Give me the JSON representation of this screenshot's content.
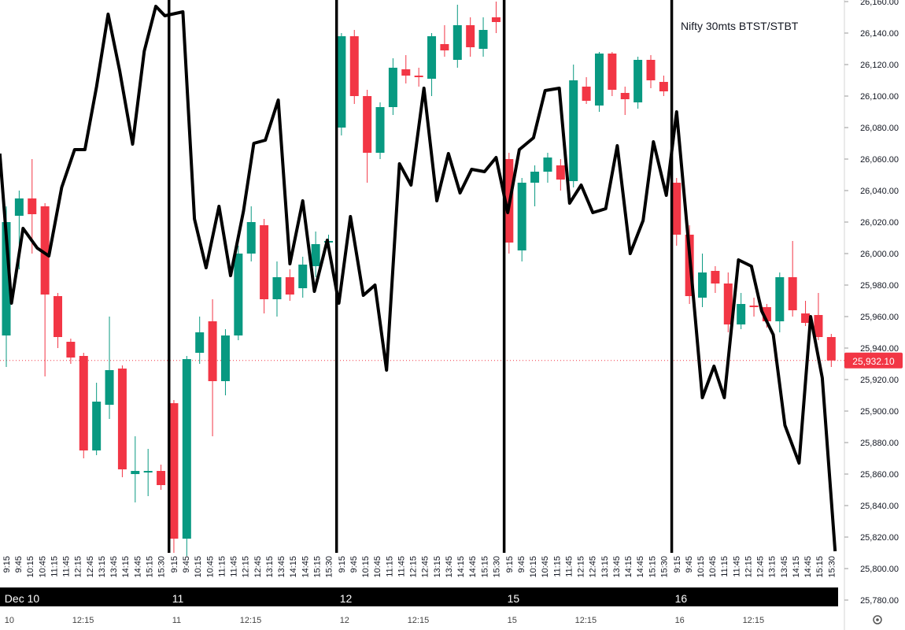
{
  "chart_data": {
    "type": "candlestick",
    "title": "Nifty 30mts BTST/STBT",
    "days": [
      "Dec 10",
      "11",
      "12",
      "15",
      "16"
    ],
    "time_labels": [
      "9:15",
      "9:45",
      "10:15",
      "10:45",
      "11:15",
      "11:45",
      "12:15",
      "12:45",
      "13:15",
      "13:45",
      "14:15",
      "14:45",
      "15:15",
      "15:30"
    ],
    "lower_labels": [
      "10",
      "12:15",
      "11",
      "12:15",
      "12",
      "12:15",
      "15",
      "12:15",
      "16",
      "12:15"
    ],
    "up_color": "#089981",
    "down_color": "#f23645",
    "open": [
      25948,
      26024,
      26035,
      26030,
      25973,
      25944,
      25935,
      25875,
      25904,
      25927,
      25860,
      25861,
      25862,
      25905,
      25819,
      25937,
      25957,
      25919,
      25948,
      26000,
      26018,
      25971,
      25985,
      25978,
      25992,
      26007,
      26080,
      26138,
      26100,
      26064,
      26093,
      26117,
      26113,
      26111,
      26133,
      26123,
      26145,
      26130,
      26150,
      26060,
      26002,
      26045,
      26052,
      26056,
      26046,
      26106,
      26094,
      26127,
      26102,
      26096,
      26123,
      26109,
      26045,
      26012,
      25972,
      25989,
      25981,
      25955,
      25967,
      25966,
      25957,
      25985,
      25962,
      25961,
      25947
    ],
    "high": [
      26030,
      26040,
      26060,
      26032,
      25975,
      25946,
      25937,
      25918,
      25960,
      25929,
      25884,
      25876,
      25866,
      25907,
      25935,
      25960,
      25971,
      25952,
      26005,
      26030,
      26022,
      25995,
      25990,
      25998,
      26014,
      26012,
      26140,
      26142,
      26104,
      26096,
      26124,
      26126,
      26118,
      26140,
      26145,
      26158,
      26150,
      26150,
      26160,
      26064,
      26048,
      26056,
      26064,
      26060,
      26120,
      26112,
      26128,
      26128,
      26106,
      26125,
      26126,
      26113,
      26048,
      26018,
      26000,
      25992,
      25988,
      25975,
      25972,
      25968,
      25988,
      26008,
      25970,
      25975,
      25949
    ],
    "low": [
      25928,
      25990,
      26000,
      25922,
      25940,
      25930,
      25870,
      25872,
      25895,
      25858,
      25842,
      25846,
      25850,
      25810,
      25808,
      25930,
      25884,
      25910,
      25945,
      25995,
      25962,
      25960,
      25970,
      25972,
      25985,
      26002,
      26075,
      26095,
      26045,
      26060,
      26088,
      26108,
      26106,
      26100,
      26125,
      26118,
      26125,
      26125,
      26140,
      26000,
      25995,
      26030,
      26045,
      26040,
      26042,
      26095,
      26090,
      26100,
      26088,
      26092,
      26105,
      26100,
      26005,
      25968,
      25966,
      25975,
      25950,
      25952,
      25960,
      25953,
      25950,
      25960,
      25954,
      25945,
      25928
    ],
    "close": [
      26020,
      26035,
      26025,
      25974,
      25947,
      25934,
      25875,
      25906,
      25926,
      25863,
      25862,
      25862,
      25853,
      25819,
      25933,
      25950,
      25919,
      25948,
      26000,
      26020,
      25971,
      25985,
      25974,
      25993,
      26006,
      26008,
      26138,
      26100,
      26064,
      26093,
      26118,
      26113,
      26112,
      26138,
      26129,
      26145,
      26131,
      26142,
      26147,
      26007,
      26045,
      26052,
      26061,
      26047,
      26110,
      26097,
      26127,
      26104,
      26098,
      26123,
      26110,
      26103,
      26012,
      25973,
      25988,
      25981,
      25955,
      25968,
      25966,
      25957,
      25985,
      25964,
      25956,
      25947,
      25932.1
    ],
    "overlay": {
      "type": "line",
      "color": "#000000",
      "x": [
        -0.5,
        0.4,
        1.3,
        2.4,
        3.3,
        4.3,
        5.3,
        6.1,
        7.0,
        7.9,
        8.8,
        9.8,
        10.7,
        11.6,
        12.3,
        13.7,
        14.6,
        15.5,
        16.5,
        17.4,
        18.4,
        19.2,
        20.1,
        21.1,
        22.0,
        23.0,
        23.9,
        24.9,
        25.8,
        26.7,
        27.7,
        28.6,
        29.5,
        30.5,
        31.4,
        32.4,
        33.4,
        34.3,
        35.2,
        36.1,
        37.1,
        38.0,
        38.9,
        39.8,
        40.9,
        41.8,
        42.9,
        43.7,
        44.6,
        45.5,
        46.5,
        47.4,
        48.4,
        49.4,
        50.2,
        51.2,
        52.0,
        53.1,
        54.0,
        54.9,
        55.7,
        56.8,
        57.8,
        58.6,
        59.5,
        60.4,
        61.5,
        62.4,
        63.3,
        64.3
      ],
      "values": [
        26063.5,
        25968.5,
        26016,
        26003.5,
        25998.5,
        26042,
        26066,
        26066,
        26106,
        26152,
        26116,
        26069.5,
        26128.5,
        26157,
        26151,
        26153.5,
        26022,
        25991,
        26030,
        25986,
        26027,
        26070,
        26072,
        26097.5,
        25993.5,
        26033.5,
        25976,
        26008.5,
        25968.5,
        26023.5,
        25973.5,
        25980,
        25926,
        26057,
        26043.5,
        26105,
        26033.5,
        26063.5,
        26038.5,
        26053.5,
        26052,
        26061,
        26026,
        26066,
        26073.5,
        26103.5,
        26105,
        26032,
        26043.5,
        26026,
        26028.5,
        26068.5,
        26000,
        26021,
        26071,
        26037,
        26090,
        25991,
        25908.5,
        25928.5,
        25908.5,
        25996,
        25992,
        25963.5,
        25948.5,
        25891,
        25867,
        25960,
        25921,
        25811
      ]
    },
    "last_price": 25932.1,
    "last_price_label": "25,932.10",
    "ylim": [
      25780,
      26160
    ],
    "yticks": [
      {
        "value": 25780,
        "label": "25,780.00"
      },
      {
        "value": 25800,
        "label": "25,800.00"
      },
      {
        "value": 25820,
        "label": "25,820.00"
      },
      {
        "value": 25840,
        "label": "25,840.00"
      },
      {
        "value": 25860,
        "label": "25,860.00"
      },
      {
        "value": 25880,
        "label": "25,880.00"
      },
      {
        "value": 25900,
        "label": "25,900.00"
      },
      {
        "value": 25920,
        "label": "25,920.00"
      },
      {
        "value": 25940,
        "label": "25,940.00"
      },
      {
        "value": 25960,
        "label": "25,960.00"
      },
      {
        "value": 25980,
        "label": "25,980.00"
      },
      {
        "value": 26000,
        "label": "26,000.00"
      },
      {
        "value": 26020,
        "label": "26,020.00"
      },
      {
        "value": 26040,
        "label": "26,040.00"
      },
      {
        "value": 26060,
        "label": "26,060.00"
      },
      {
        "value": 26080,
        "label": "26,080.00"
      },
      {
        "value": 26100,
        "label": "26,100.00"
      },
      {
        "value": 26120,
        "label": "26,120.00"
      },
      {
        "value": 26140,
        "label": "26,140.00"
      },
      {
        "value": 26160,
        "label": "26,160.00"
      }
    ],
    "grid": false
  }
}
